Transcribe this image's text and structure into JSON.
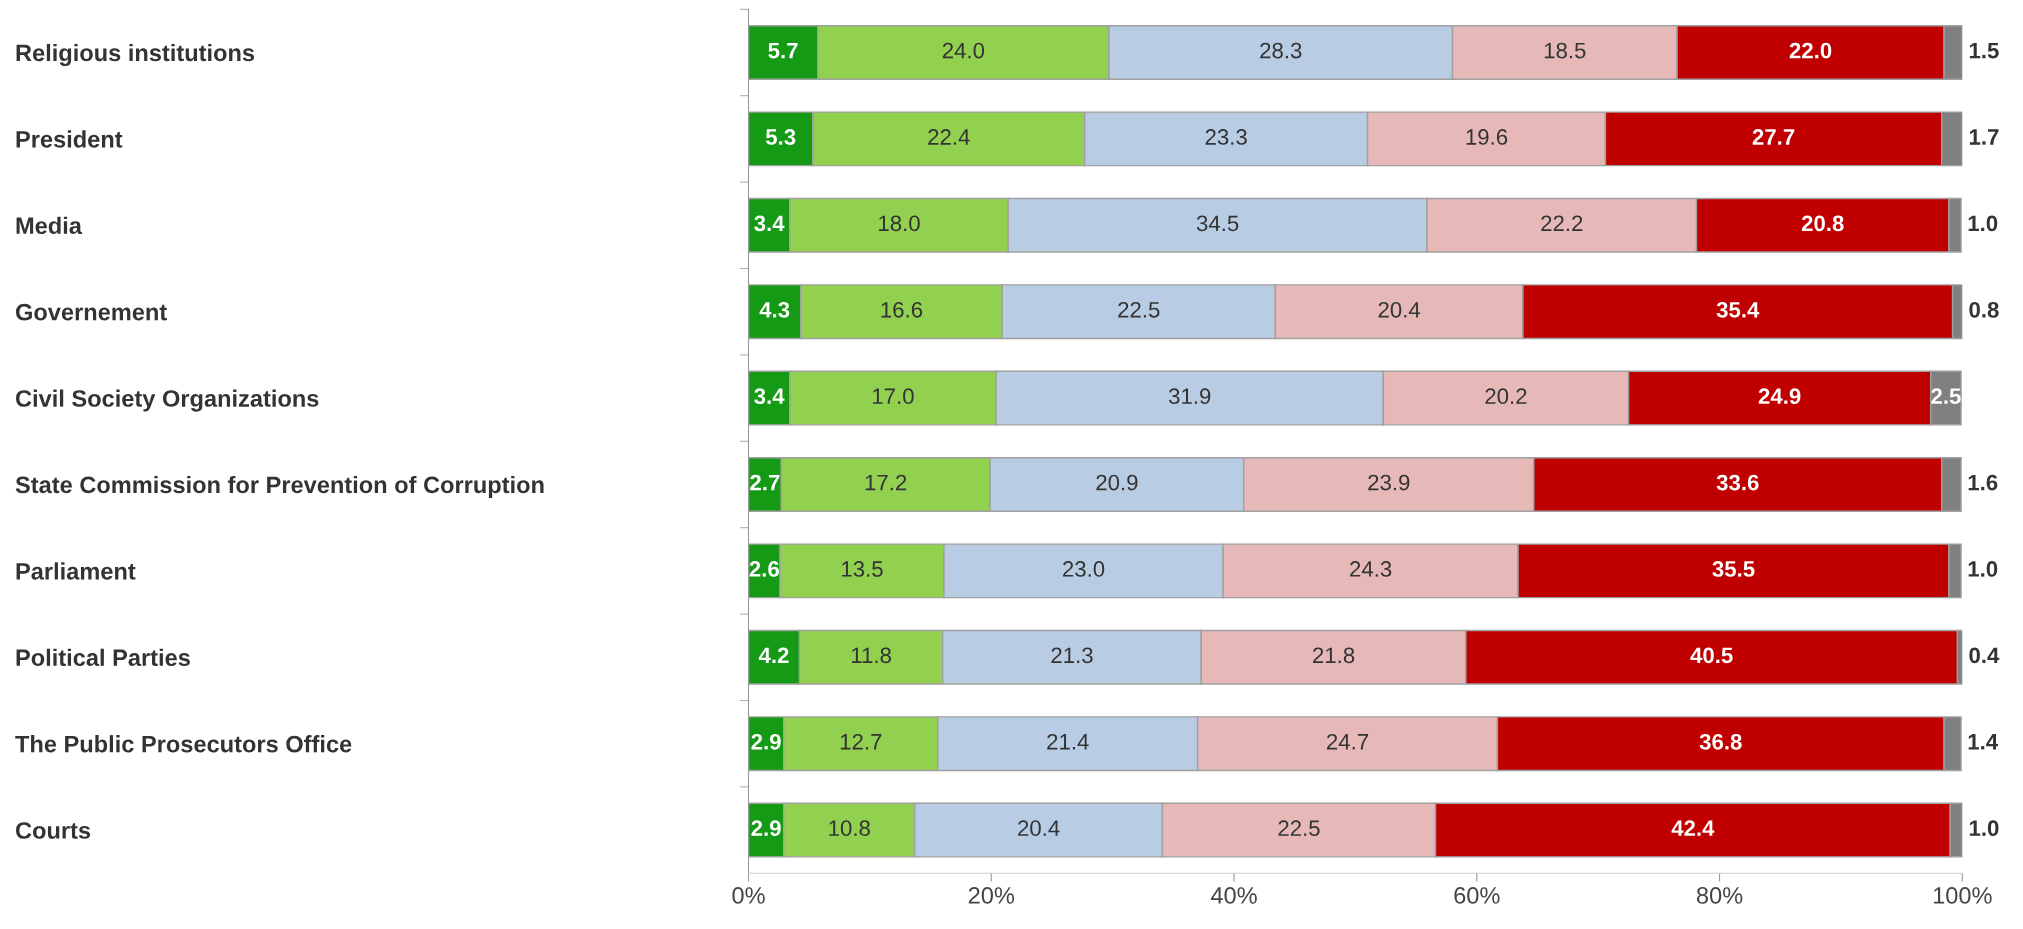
{
  "chart_data": {
    "type": "bar",
    "orientation": "horizontal",
    "stacked": true,
    "categories": [
      "Religious institutions",
      "President",
      "Media",
      "Governement",
      "Civil Society Organizations",
      "State Commission for Prevention of Corruption",
      "Parliament",
      "Political Parties",
      "The Public Prosecutors Office",
      "Courts"
    ],
    "series": [
      {
        "color": "#159a15",
        "values": [
          5.7,
          5.3,
          3.4,
          4.3,
          3.4,
          2.7,
          2.6,
          4.2,
          2.9,
          2.9
        ],
        "value_labels": [
          "5.7",
          "5.3",
          "3.4",
          "4.3",
          "3.4",
          "2.7",
          "2.6",
          "4.2",
          "2.9",
          "2.9"
        ]
      },
      {
        "color": "#92d050",
        "values": [
          24.0,
          22.4,
          18.0,
          16.6,
          17.0,
          17.2,
          13.5,
          11.8,
          12.7,
          10.8
        ],
        "value_labels": [
          "24.0",
          "22.4",
          "18.0",
          "16.6",
          "17.0",
          "17.2",
          "13.5",
          "11.8",
          "12.7",
          "10.8"
        ]
      },
      {
        "color": "#b8cce4",
        "values": [
          28.3,
          23.3,
          34.5,
          22.5,
          31.9,
          20.9,
          23.0,
          21.3,
          21.4,
          20.4
        ],
        "value_labels": [
          "28.3",
          "23.3",
          "34.5",
          "22.5",
          "31.9",
          "20.9",
          "23.0",
          "21.3",
          "21.4",
          "20.4"
        ]
      },
      {
        "color": "#e6b9b8",
        "values": [
          18.5,
          19.6,
          22.2,
          20.4,
          20.2,
          23.9,
          24.3,
          21.8,
          24.7,
          22.5
        ],
        "value_labels": [
          "18.5",
          "19.6",
          "22.2",
          "20.4",
          "20.2",
          "23.9",
          "24.3",
          "21.8",
          "24.7",
          "22.5"
        ]
      },
      {
        "color": "#c00000",
        "values": [
          22.0,
          27.7,
          20.8,
          35.4,
          24.9,
          33.6,
          35.5,
          40.5,
          36.8,
          42.4
        ],
        "value_labels": [
          "22.0",
          "27.7",
          "20.8",
          "35.4",
          "24.9",
          "33.6",
          "35.5",
          "40.5",
          "36.8",
          "42.4"
        ]
      },
      {
        "color": "#808080",
        "values": [
          1.5,
          1.7,
          1.0,
          0.8,
          2.5,
          1.6,
          1.0,
          0.4,
          1.4,
          1.0
        ],
        "value_labels": [
          "1.5",
          "1.7",
          "1.0",
          "0.8",
          "2.5",
          "1.6",
          "1.0",
          "0.4",
          "1.4",
          "1.0"
        ]
      }
    ],
    "xlim": [
      0,
      100
    ],
    "xticks": [
      {
        "value": 0,
        "label": "0%"
      },
      {
        "value": 20,
        "label": "20%"
      },
      {
        "value": 40,
        "label": "40%"
      },
      {
        "value": 60,
        "label": "60%"
      },
      {
        "value": 80,
        "label": "80%"
      },
      {
        "value": 100,
        "label": "100%"
      }
    ],
    "grid": false,
    "legend": false
  }
}
